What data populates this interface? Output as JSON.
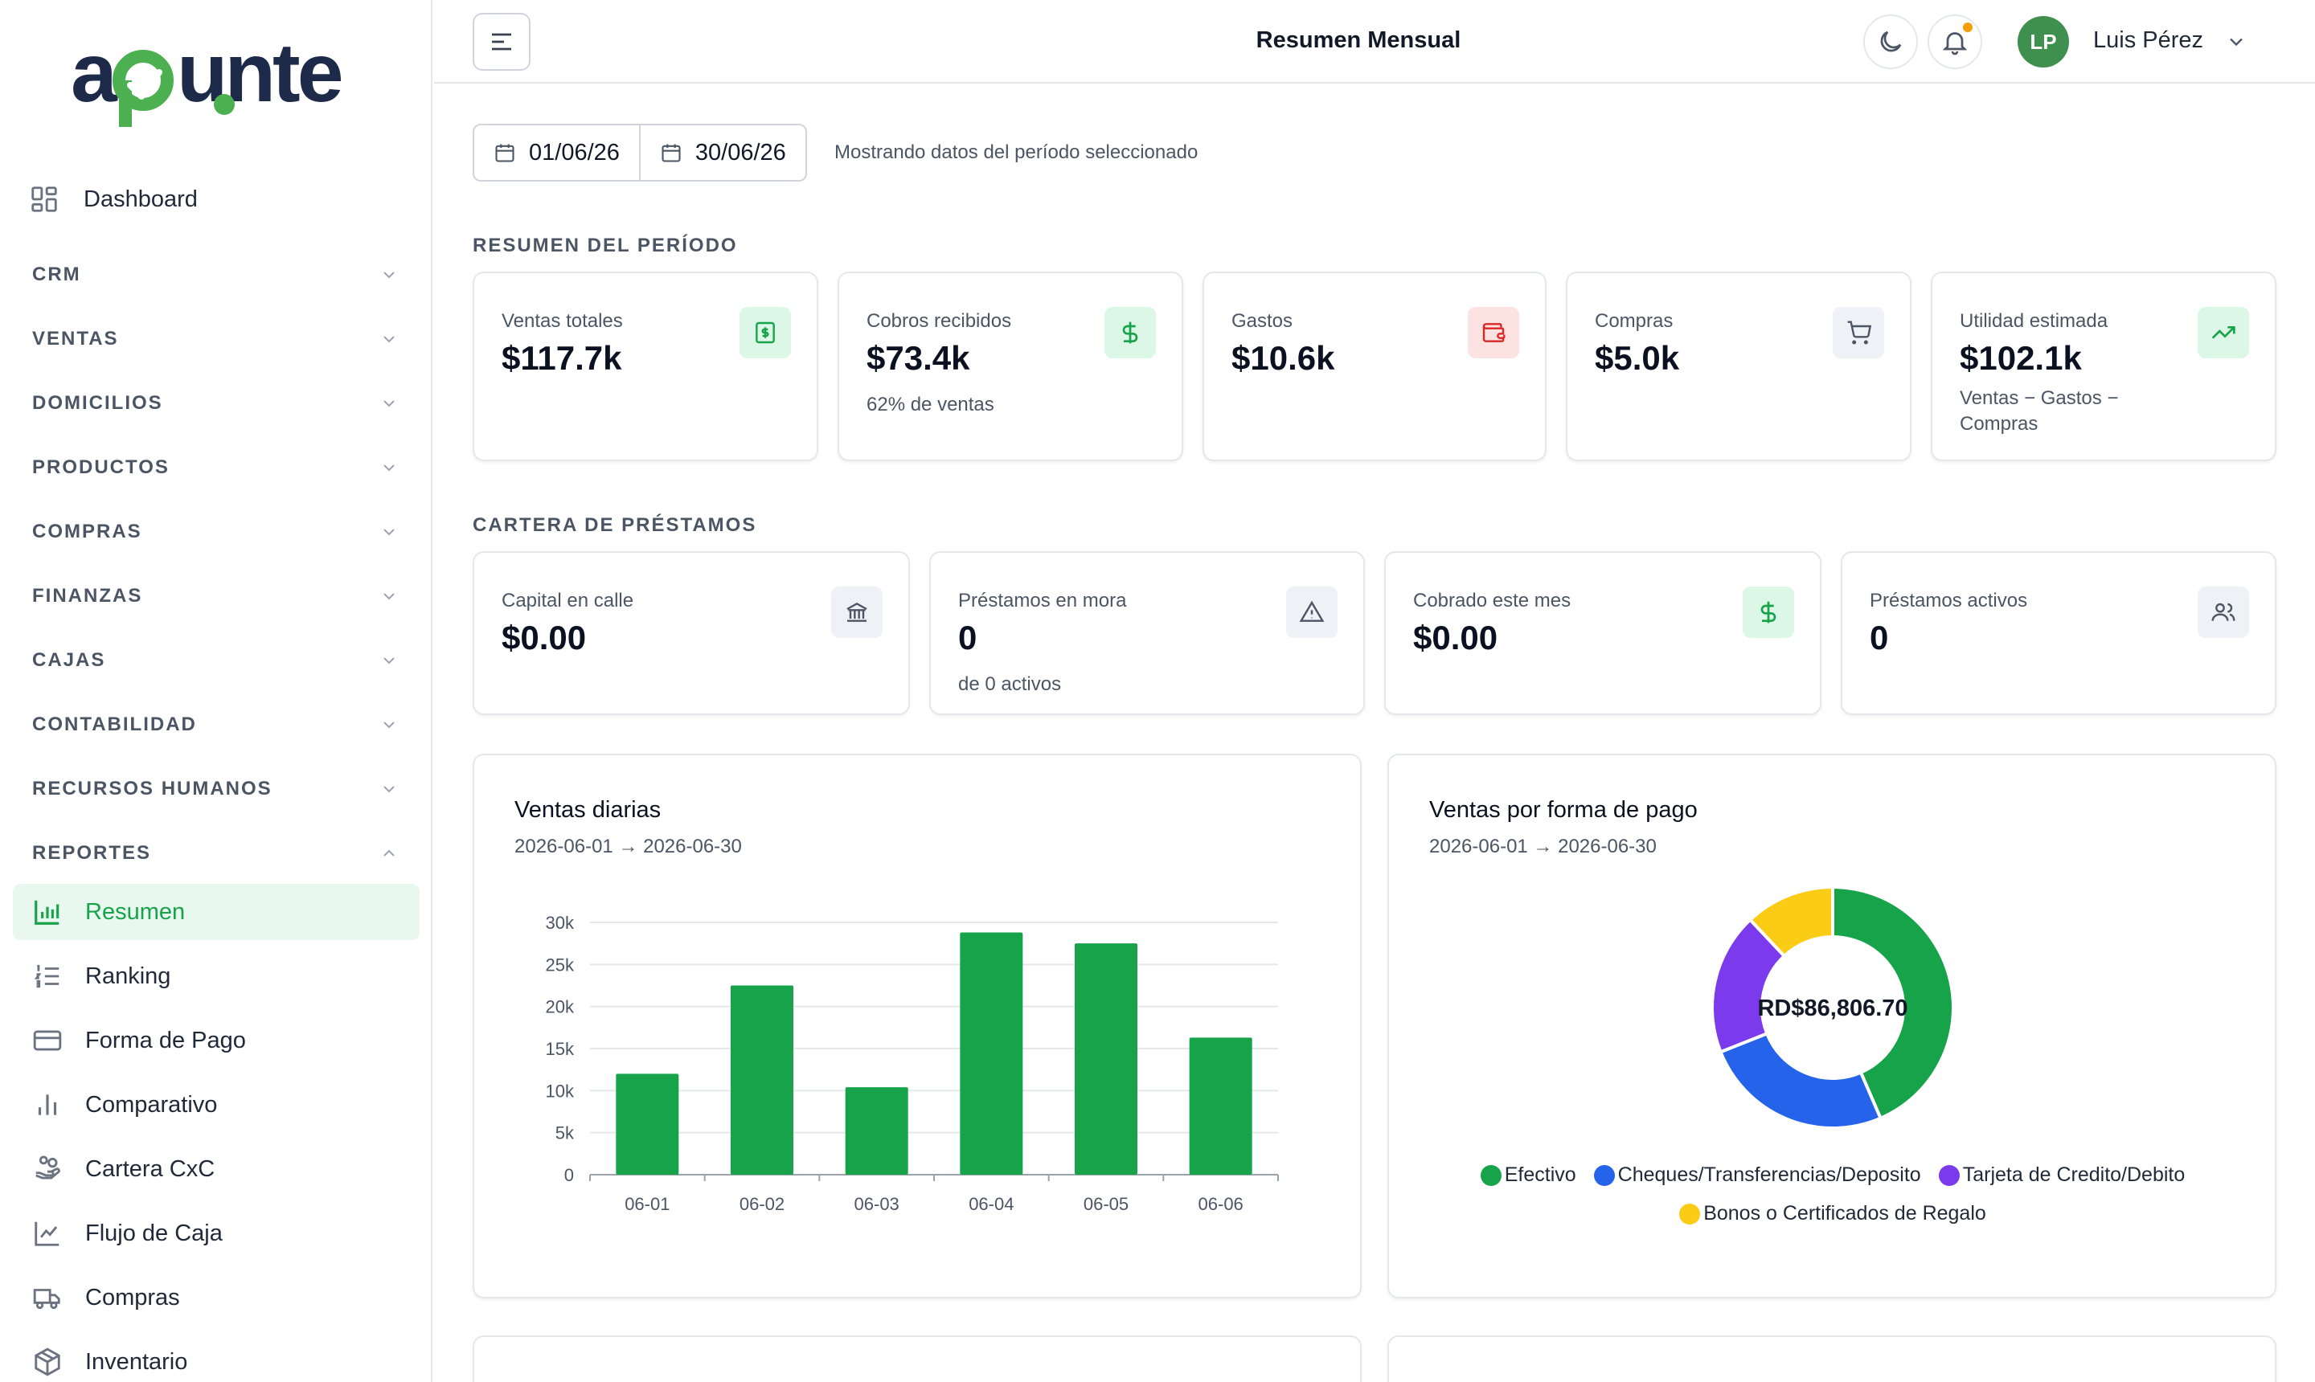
{
  "brand": {
    "name": "apunte",
    "colors": {
      "navy": "#1e2a4a",
      "green": "#4caf50"
    }
  },
  "sidebar": {
    "dashboard_label": "Dashboard",
    "sections": [
      {
        "label": "CRM",
        "expanded": false
      },
      {
        "label": "VENTAS",
        "expanded": false
      },
      {
        "label": "DOMICILIOS",
        "expanded": false
      },
      {
        "label": "PRODUCTOS",
        "expanded": false
      },
      {
        "label": "COMPRAS",
        "expanded": false
      },
      {
        "label": "FINANZAS",
        "expanded": false
      },
      {
        "label": "CAJAS",
        "expanded": false
      },
      {
        "label": "CONTABILIDAD",
        "expanded": false
      },
      {
        "label": "RECURSOS HUMANOS",
        "expanded": false
      },
      {
        "label": "REPORTES",
        "expanded": true
      }
    ],
    "report_items": [
      {
        "label": "Resumen",
        "icon": "bar-chart-icon",
        "active": true
      },
      {
        "label": "Ranking",
        "icon": "list-ordered-icon",
        "active": false
      },
      {
        "label": "Forma de Pago",
        "icon": "credit-card-icon",
        "active": false
      },
      {
        "label": "Comparativo",
        "icon": "bar-chart-simple-icon",
        "active": false
      },
      {
        "label": "Cartera CxC",
        "icon": "hand-coins-icon",
        "active": false
      },
      {
        "label": "Flujo de Caja",
        "icon": "line-chart-icon",
        "active": false
      },
      {
        "label": "Compras",
        "icon": "truck-icon",
        "active": false
      },
      {
        "label": "Inventario",
        "icon": "package-icon",
        "active": false
      }
    ]
  },
  "header": {
    "title": "Resumen Mensual",
    "user": {
      "initials": "LP",
      "name": "Luis Pérez"
    }
  },
  "filters": {
    "start_date": "01/06/26",
    "end_date": "30/06/26",
    "note": "Mostrando datos del período seleccionado"
  },
  "summary": {
    "title": "RESUMEN DEL PERÍODO",
    "cards": [
      {
        "label": "Ventas totales",
        "value": "$117.7k",
        "sub": "",
        "icon": "receipt-icon",
        "tone": "green"
      },
      {
        "label": "Cobros recibidos",
        "value": "$73.4k",
        "sub": "62% de ventas",
        "icon": "dollar-icon",
        "tone": "green"
      },
      {
        "label": "Gastos",
        "value": "$10.6k",
        "sub": "",
        "icon": "wallet-icon",
        "tone": "red"
      },
      {
        "label": "Compras",
        "value": "$5.0k",
        "sub": "",
        "icon": "cart-icon",
        "tone": "gray"
      },
      {
        "label": "Utilidad estimada",
        "value": "$102.1k",
        "sub": "Ventas − Gastos − Compras",
        "icon": "trending-up-icon",
        "tone": "green"
      }
    ]
  },
  "loans": {
    "title": "CARTERA DE PRÉSTAMOS",
    "cards": [
      {
        "label": "Capital en calle",
        "value": "$0.00",
        "sub": "",
        "icon": "bank-icon",
        "tone": "gray"
      },
      {
        "label": "Préstamos en mora",
        "value": "0",
        "sub": "de 0 activos",
        "icon": "alert-icon",
        "tone": "gray"
      },
      {
        "label": "Cobrado este mes",
        "value": "$0.00",
        "sub": "",
        "icon": "dollar-icon",
        "tone": "green"
      },
      {
        "label": "Préstamos activos",
        "value": "0",
        "sub": "",
        "icon": "users-icon",
        "tone": "gray"
      }
    ]
  },
  "daily_sales": {
    "title": "Ventas diarias",
    "range": "2026-06-01 → 2026-06-30"
  },
  "payment_methods": {
    "title": "Ventas por forma de pago",
    "range": "2026-06-01 → 2026-06-30",
    "center_label": "RD$86,806.70"
  },
  "chart_data": [
    {
      "type": "bar",
      "categories": [
        "06-01",
        "06-02",
        "06-03",
        "06-04",
        "06-05",
        "06-06"
      ],
      "values": [
        12000,
        22500,
        10400,
        28800,
        27500,
        16300
      ],
      "ylim": [
        0,
        30000
      ],
      "yticks": [
        "0",
        "5k",
        "10k",
        "15k",
        "20k",
        "25k",
        "30k"
      ],
      "ytick_values": [
        0,
        5000,
        10000,
        15000,
        20000,
        25000,
        30000
      ],
      "grid": true,
      "color": "#16a34a"
    },
    {
      "type": "pie",
      "donut": true,
      "labels": [
        "Efectivo",
        "Cheques/Transferencias/Deposito",
        "Tarjeta de Credito/Debito",
        "Bonos o Certificados de Regalo"
      ],
      "values": [
        43.5,
        25.5,
        19.0,
        12.0
      ],
      "colors": [
        "#16a34a",
        "#2563eb",
        "#7c3aed",
        "#facc15"
      ],
      "legend": "bottom"
    }
  ]
}
